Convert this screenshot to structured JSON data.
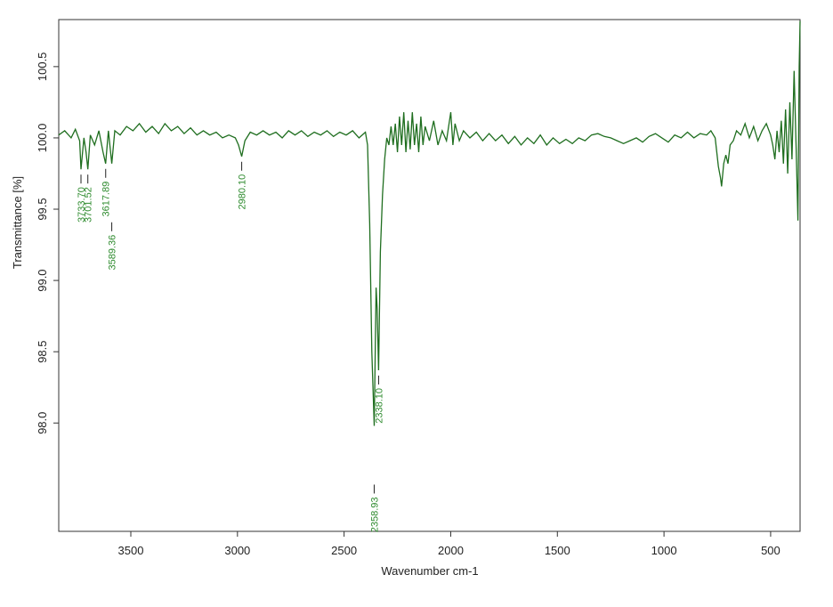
{
  "chart_data": {
    "type": "line",
    "xlabel": "Wavenumber cm-1",
    "ylabel": "Transmittance [%]",
    "color": "#1f6e1f",
    "annotation_color": "#2e8b2e",
    "xlim": [
      3838,
      362
    ],
    "ylim": [
      97.24,
      100.83
    ],
    "xticks": [
      3500,
      3000,
      2500,
      2000,
      1500,
      1000,
      500
    ],
    "yticks": [
      {
        "value": 98,
        "label": "98.0"
      },
      98.5,
      {
        "value": 99,
        "label": "99.0"
      },
      99.5,
      {
        "value": 100,
        "label": "100.0"
      },
      100.5
    ],
    "x": [
      3838,
      3810,
      3780,
      3760,
      3740,
      3733.7,
      3720,
      3710,
      3701.5,
      3690,
      3670,
      3650,
      3630,
      3617.9,
      3605,
      3589.4,
      3575,
      3550,
      3520,
      3490,
      3460,
      3430,
      3400,
      3370,
      3340,
      3310,
      3280,
      3250,
      3220,
      3190,
      3160,
      3130,
      3100,
      3070,
      3040,
      3010,
      2995,
      2980.1,
      2965,
      2940,
      2910,
      2880,
      2850,
      2820,
      2790,
      2760,
      2730,
      2700,
      2670,
      2640,
      2610,
      2580,
      2550,
      2520,
      2490,
      2460,
      2430,
      2400,
      2390,
      2380,
      2370,
      2358.9,
      2350,
      2345,
      2338.1,
      2330,
      2320,
      2310,
      2300,
      2290,
      2280,
      2270,
      2260,
      2250,
      2240,
      2230,
      2220,
      2210,
      2200,
      2190,
      2180,
      2170,
      2160,
      2150,
      2140,
      2130,
      2120,
      2100,
      2080,
      2060,
      2040,
      2020,
      2000,
      1990,
      1980,
      1960,
      1940,
      1910,
      1880,
      1850,
      1820,
      1790,
      1760,
      1730,
      1700,
      1670,
      1640,
      1610,
      1580,
      1550,
      1520,
      1490,
      1460,
      1430,
      1400,
      1370,
      1340,
      1310,
      1280,
      1250,
      1220,
      1190,
      1160,
      1130,
      1100,
      1070,
      1040,
      1010,
      980,
      950,
      920,
      890,
      860,
      830,
      800,
      780,
      760,
      745,
      735,
      730,
      720,
      710,
      700,
      690,
      675,
      660,
      640,
      620,
      600,
      580,
      560,
      540,
      520,
      500,
      490,
      480,
      470,
      460,
      450,
      440,
      430,
      420,
      410,
      400,
      390,
      380,
      372,
      366,
      362
    ],
    "values": [
      100.02,
      100.05,
      100.0,
      100.06,
      99.98,
      99.78,
      100.0,
      99.9,
      99.78,
      100.02,
      99.95,
      100.05,
      99.9,
      99.82,
      100.05,
      99.82,
      100.05,
      100.02,
      100.08,
      100.05,
      100.1,
      100.04,
      100.08,
      100.03,
      100.1,
      100.05,
      100.08,
      100.03,
      100.07,
      100.02,
      100.05,
      100.02,
      100.04,
      100.0,
      100.02,
      100.0,
      99.95,
      99.87,
      99.98,
      100.04,
      100.02,
      100.05,
      100.02,
      100.04,
      100.0,
      100.05,
      100.02,
      100.05,
      100.01,
      100.04,
      100.02,
      100.05,
      100.01,
      100.04,
      100.02,
      100.05,
      100.0,
      100.04,
      99.95,
      99.4,
      98.5,
      97.98,
      98.95,
      98.8,
      98.37,
      99.2,
      99.6,
      99.85,
      100.0,
      99.95,
      100.08,
      99.95,
      100.1,
      99.9,
      100.15,
      99.95,
      100.18,
      99.9,
      100.12,
      99.92,
      100.18,
      99.95,
      100.1,
      99.9,
      100.15,
      99.95,
      100.08,
      99.98,
      100.12,
      99.95,
      100.05,
      99.98,
      100.18,
      99.95,
      100.1,
      99.98,
      100.05,
      100.0,
      100.04,
      99.98,
      100.03,
      99.98,
      100.02,
      99.96,
      100.01,
      99.95,
      100.0,
      99.96,
      100.02,
      99.95,
      100.0,
      99.96,
      99.99,
      99.96,
      100.0,
      99.98,
      100.02,
      100.03,
      100.01,
      100.0,
      99.98,
      99.96,
      99.98,
      100.0,
      99.97,
      100.01,
      100.03,
      100.0,
      99.97,
      100.02,
      100.0,
      100.04,
      100.0,
      100.03,
      100.02,
      100.05,
      100.0,
      99.8,
      99.72,
      99.66,
      99.82,
      99.88,
      99.82,
      99.95,
      99.98,
      100.05,
      100.02,
      100.1,
      100.0,
      100.08,
      99.98,
      100.05,
      100.1,
      100.02,
      99.95,
      99.85,
      100.05,
      99.9,
      100.12,
      99.82,
      100.2,
      99.75,
      100.25,
      99.85,
      100.47,
      99.9,
      99.42,
      100.5,
      100.82
    ],
    "peaks": [
      {
        "x": {
          "value": 3733.7,
          "label": "3733.70"
        },
        "y": 99.78
      },
      {
        "x": {
          "value": 3701.52,
          "label": "3701.52"
        },
        "y": 99.78
      },
      {
        "x": {
          "value": 3617.89,
          "label": "3617.89"
        },
        "y": 99.82
      },
      {
        "x": {
          "value": 3589.36,
          "label": "3589.36"
        },
        "y": 99.82
      },
      {
        "x": {
          "value": 2980.1,
          "label": "2980.10"
        },
        "y": 99.87
      },
      {
        "x": {
          "value": 2358.93,
          "label": "2358.93"
        },
        "y": 97.98
      },
      {
        "x": {
          "value": 2338.1,
          "label": "2338.10"
        },
        "y": 98.37
      }
    ]
  }
}
